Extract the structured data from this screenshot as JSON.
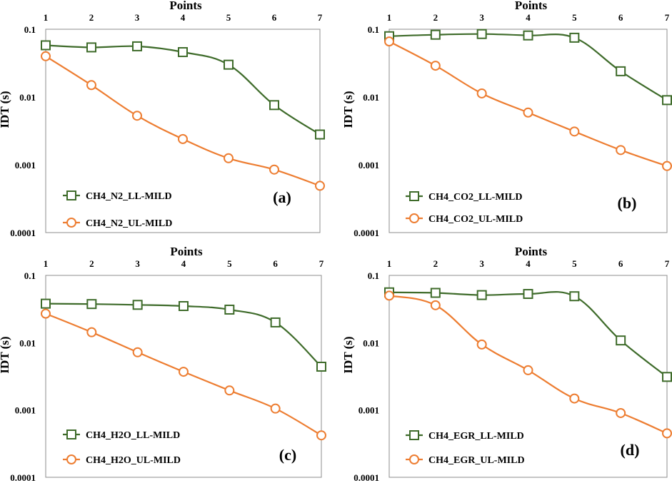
{
  "chart_data": [
    {
      "type": "line",
      "panel_label": "(a)",
      "x_axis_title": "Points",
      "y_axis_title": "IDT (s)",
      "y_scale": "log",
      "ylim": [
        0.0001,
        0.1
      ],
      "xlim": [
        1,
        7
      ],
      "x": [
        1,
        2,
        3,
        4,
        5,
        6,
        7
      ],
      "x_ticks": [
        "1",
        "2",
        "3",
        "4",
        "5",
        "6",
        "7"
      ],
      "y_ticks": [
        "0.1",
        "0.01",
        "0.001",
        "0.0001"
      ],
      "legend_position": "bottom-left",
      "series": [
        {
          "name": "CH4_N2_LL-MILD",
          "marker": "square",
          "color": "#3e6b2a",
          "values": [
            0.058,
            0.054,
            0.056,
            0.046,
            0.03,
            0.0076,
            0.0028
          ]
        },
        {
          "name": "CH4_N2_UL-MILD",
          "marker": "circle",
          "color": "#ed7d31",
          "values": [
            0.04,
            0.015,
            0.0053,
            0.0024,
            0.00125,
            0.00085,
            0.00049
          ]
        }
      ]
    },
    {
      "type": "line",
      "panel_label": "(b)",
      "x_axis_title": "Points",
      "y_axis_title": "IDT (s)",
      "y_scale": "log",
      "ylim": [
        0.0001,
        0.1
      ],
      "xlim": [
        1,
        7
      ],
      "x": [
        1,
        2,
        3,
        4,
        5,
        6,
        7
      ],
      "x_ticks": [
        "1",
        "2",
        "3",
        "4",
        "5",
        "6",
        "7"
      ],
      "y_ticks": [
        "0.1",
        "0.01",
        "0.001",
        "0.0001"
      ],
      "legend_position": "bottom-left",
      "series": [
        {
          "name": "CH4_CO2_LL-MILD",
          "marker": "square",
          "color": "#3e6b2a",
          "values": [
            0.079,
            0.083,
            0.085,
            0.081,
            0.075,
            0.024,
            0.009
          ]
        },
        {
          "name": "CH4_CO2_UL-MILD",
          "marker": "circle",
          "color": "#ed7d31",
          "values": [
            0.066,
            0.029,
            0.0113,
            0.0059,
            0.0031,
            0.00165,
            0.00096
          ]
        }
      ]
    },
    {
      "type": "line",
      "panel_label": "(c)",
      "x_axis_title": "Points",
      "y_axis_title": "IDT (s)",
      "y_scale": "log",
      "ylim": [
        0.0001,
        0.1
      ],
      "xlim": [
        1,
        7
      ],
      "x": [
        1,
        2,
        3,
        4,
        5,
        6,
        7
      ],
      "x_ticks": [
        "1",
        "2",
        "3",
        "4",
        "5",
        "6",
        "7"
      ],
      "y_ticks": [
        "0.1",
        "0.01",
        "0.001",
        "0.0001"
      ],
      "legend_position": "bottom-left",
      "series": [
        {
          "name": "CH4_H2O_LL-MILD",
          "marker": "square",
          "color": "#3e6b2a",
          "values": [
            0.038,
            0.0375,
            0.0365,
            0.035,
            0.031,
            0.02,
            0.0044
          ]
        },
        {
          "name": "CH4_H2O_UL-MILD",
          "marker": "circle",
          "color": "#ed7d31",
          "values": [
            0.027,
            0.0143,
            0.0072,
            0.0037,
            0.00195,
            0.00105,
            0.00042
          ]
        }
      ]
    },
    {
      "type": "line",
      "panel_label": "(d)",
      "x_axis_title": "Points",
      "y_axis_title": "IDT (s)",
      "y_scale": "log",
      "ylim": [
        0.0001,
        0.1
      ],
      "xlim": [
        1,
        7
      ],
      "x": [
        1,
        2,
        3,
        4,
        5,
        6,
        7
      ],
      "x_ticks": [
        "1",
        "2",
        "3",
        "4",
        "5",
        "6",
        "7"
      ],
      "y_ticks": [
        "0.1",
        "0.01",
        "0.001",
        "0.0001"
      ],
      "legend_position": "bottom-left",
      "series": [
        {
          "name": "CH4_EGR_LL-MILD",
          "marker": "square",
          "color": "#3e6b2a",
          "values": [
            0.056,
            0.055,
            0.051,
            0.053,
            0.049,
            0.0108,
            0.0031
          ]
        },
        {
          "name": "CH4_EGR_UL-MILD",
          "marker": "circle",
          "color": "#ed7d31",
          "values": [
            0.05,
            0.036,
            0.0094,
            0.0039,
            0.00148,
            0.0009,
            0.00045
          ]
        }
      ]
    }
  ]
}
